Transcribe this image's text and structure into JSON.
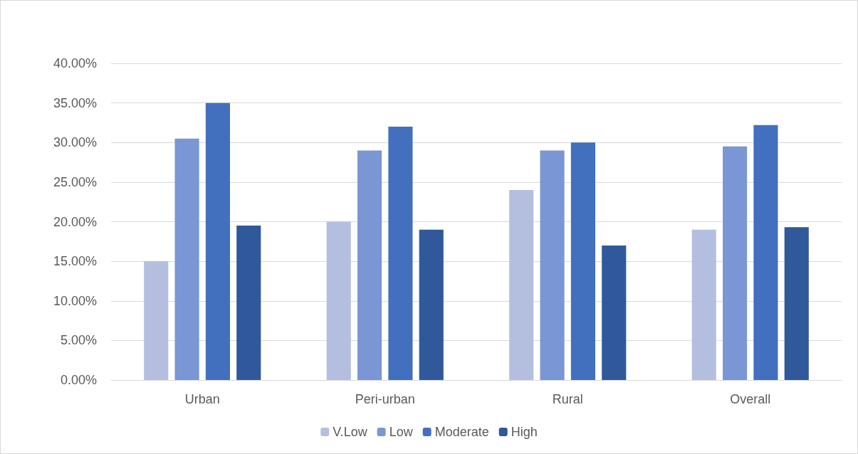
{
  "chart_data": {
    "type": "bar",
    "categories": [
      "Urban",
      "Peri-urban",
      "Rural",
      "Overall"
    ],
    "series": [
      {
        "name": "V.Low",
        "color": "#b4bfe0",
        "values": [
          15,
          20,
          24,
          19
        ]
      },
      {
        "name": "Low",
        "color": "#7a96d4",
        "values": [
          30.5,
          29,
          29,
          29.5
        ]
      },
      {
        "name": "Moderate",
        "color": "#4270be",
        "values": [
          35,
          32,
          30,
          32.2
        ]
      },
      {
        "name": "High",
        "color": "#30599c",
        "values": [
          19.5,
          19,
          17,
          19.3
        ]
      }
    ],
    "ylim": [
      0,
      40
    ],
    "yticks": [
      {
        "value": 0,
        "label": "0.00%"
      },
      {
        "value": 5,
        "label": "5.00%"
      },
      {
        "value": 10,
        "label": "10.00%"
      },
      {
        "value": 15,
        "label": "15.00%"
      },
      {
        "value": 20,
        "label": "20.00%"
      },
      {
        "value": 25,
        "label": "25.00%"
      },
      {
        "value": 30,
        "label": "30.00%"
      },
      {
        "value": 35,
        "label": "35.00%"
      },
      {
        "value": 40,
        "label": "40.00%"
      }
    ],
    "grid": "y",
    "legend": "bottom"
  }
}
